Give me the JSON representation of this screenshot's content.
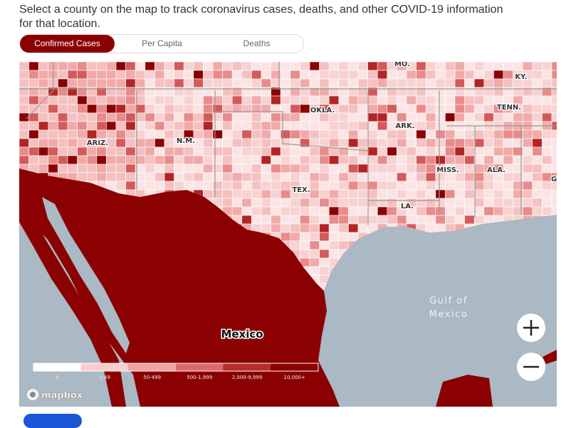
{
  "intro": "Select a county on the map to track coronavirus cases, deaths, and other COVID-19 information for that location.",
  "tabs": [
    "Confirmed Cases",
    "Per Capita",
    "Deaths"
  ],
  "map": {
    "state_labels": [
      "MO.",
      "KY.",
      "OKLA.",
      "TENN.",
      "ARK.",
      "ARIZ.",
      "N.M.",
      "MISS.",
      "ALA.",
      "GA",
      "TEX.",
      "LA."
    ],
    "country_label": "Mexico",
    "water_label": [
      "Gulf of",
      "Mexico"
    ]
  },
  "legend": {
    "bins": [
      "0",
      "1-49",
      "50-499",
      "500-1,999",
      "2,000-9,999",
      "10,000+"
    ],
    "colors": [
      "#ffffff",
      "#f8cdcd",
      "#f1a3a3",
      "#dd6a6a",
      "#b82c2c",
      "#8b0000"
    ]
  },
  "attribution": "mapbox"
}
